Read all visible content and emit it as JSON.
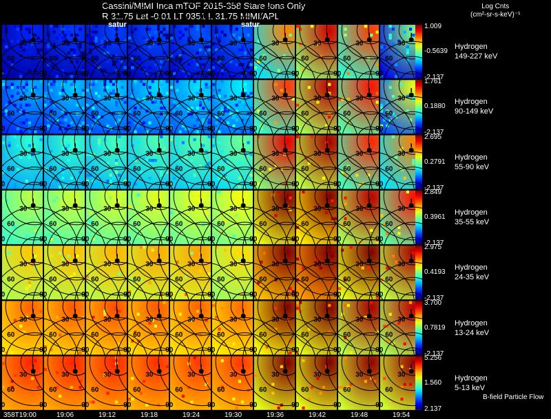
{
  "header": {
    "line1": "Cassini/MIMI Inca mTOF  2015-358   Stare   Ions Only",
    "line2": "R       31.75 Lat -0.01 LT 0351 L       31.75  MIMI/APL"
  },
  "colorbar": {
    "title_line1": "Log Cnts",
    "title_line2": "(cm²-sr-s-keV)⁻¹"
  },
  "overlay_labels": [
    "satur",
    "satur"
  ],
  "legend_note": "B-field  Particle Flow",
  "chart_data": {
    "type": "heatmap",
    "title": "Cassini/MIMI Inca mTOF  2015-358   Stare   Ions Only",
    "x": [
      "358T19:00",
      "19:06",
      "19:12",
      "19:18",
      "19:24",
      "19:30",
      "19:36",
      "19:42",
      "19:48",
      "19:54"
    ],
    "contour_labels": [
      "30",
      "60",
      "90"
    ],
    "rows": [
      {
        "species": "Hydrogen",
        "energy": "149-227 keV",
        "max": "1.009",
        "mid": "-0.5639",
        "min": "-2.137",
        "levels": [
          0.08,
          0.1,
          0.11,
          0.12,
          0.13,
          0.14,
          0.55,
          0.72,
          0.62,
          0.3
        ]
      },
      {
        "species": "Hydrogen",
        "energy": "90-149 keV",
        "max": "1.761",
        "mid": "0.1880",
        "min": "-2.137",
        "levels": [
          0.22,
          0.24,
          0.25,
          0.26,
          0.27,
          0.28,
          0.62,
          0.74,
          0.66,
          0.4
        ]
      },
      {
        "species": "Hydrogen",
        "energy": "55-90 keV",
        "max": "2.695",
        "mid": "0.2791",
        "min": "-2.137",
        "levels": [
          0.34,
          0.35,
          0.36,
          0.37,
          0.38,
          0.4,
          0.7,
          0.76,
          0.64,
          0.55
        ]
      },
      {
        "species": "Hydrogen",
        "energy": "35-55 keV",
        "max": "2.849",
        "mid": "0.3961",
        "min": "-2.137",
        "levels": [
          0.48,
          0.5,
          0.51,
          0.52,
          0.53,
          0.54,
          0.8,
          0.84,
          0.74,
          0.66
        ]
      },
      {
        "species": "Hydrogen",
        "energy": "24-35 keV",
        "max": "2.975",
        "mid": "0.4193",
        "min": "-2.137",
        "levels": [
          0.6,
          0.61,
          0.62,
          0.63,
          0.64,
          0.58,
          0.88,
          0.92,
          0.8,
          0.76
        ]
      },
      {
        "species": "Hydrogen",
        "energy": "13-24 keV",
        "max": "3.700",
        "mid": "0.7819",
        "min": "-2.137",
        "levels": [
          0.7,
          0.71,
          0.72,
          0.71,
          0.7,
          0.69,
          0.82,
          0.8,
          0.76,
          0.74
        ]
      },
      {
        "species": "Hydrogen",
        "energy": "5-13 keV",
        "max": "5.256",
        "mid": "1.560",
        "min": "2.137",
        "levels": [
          0.76,
          0.76,
          0.76,
          0.75,
          0.74,
          0.74,
          0.8,
          0.8,
          0.78,
          0.78
        ]
      }
    ]
  }
}
